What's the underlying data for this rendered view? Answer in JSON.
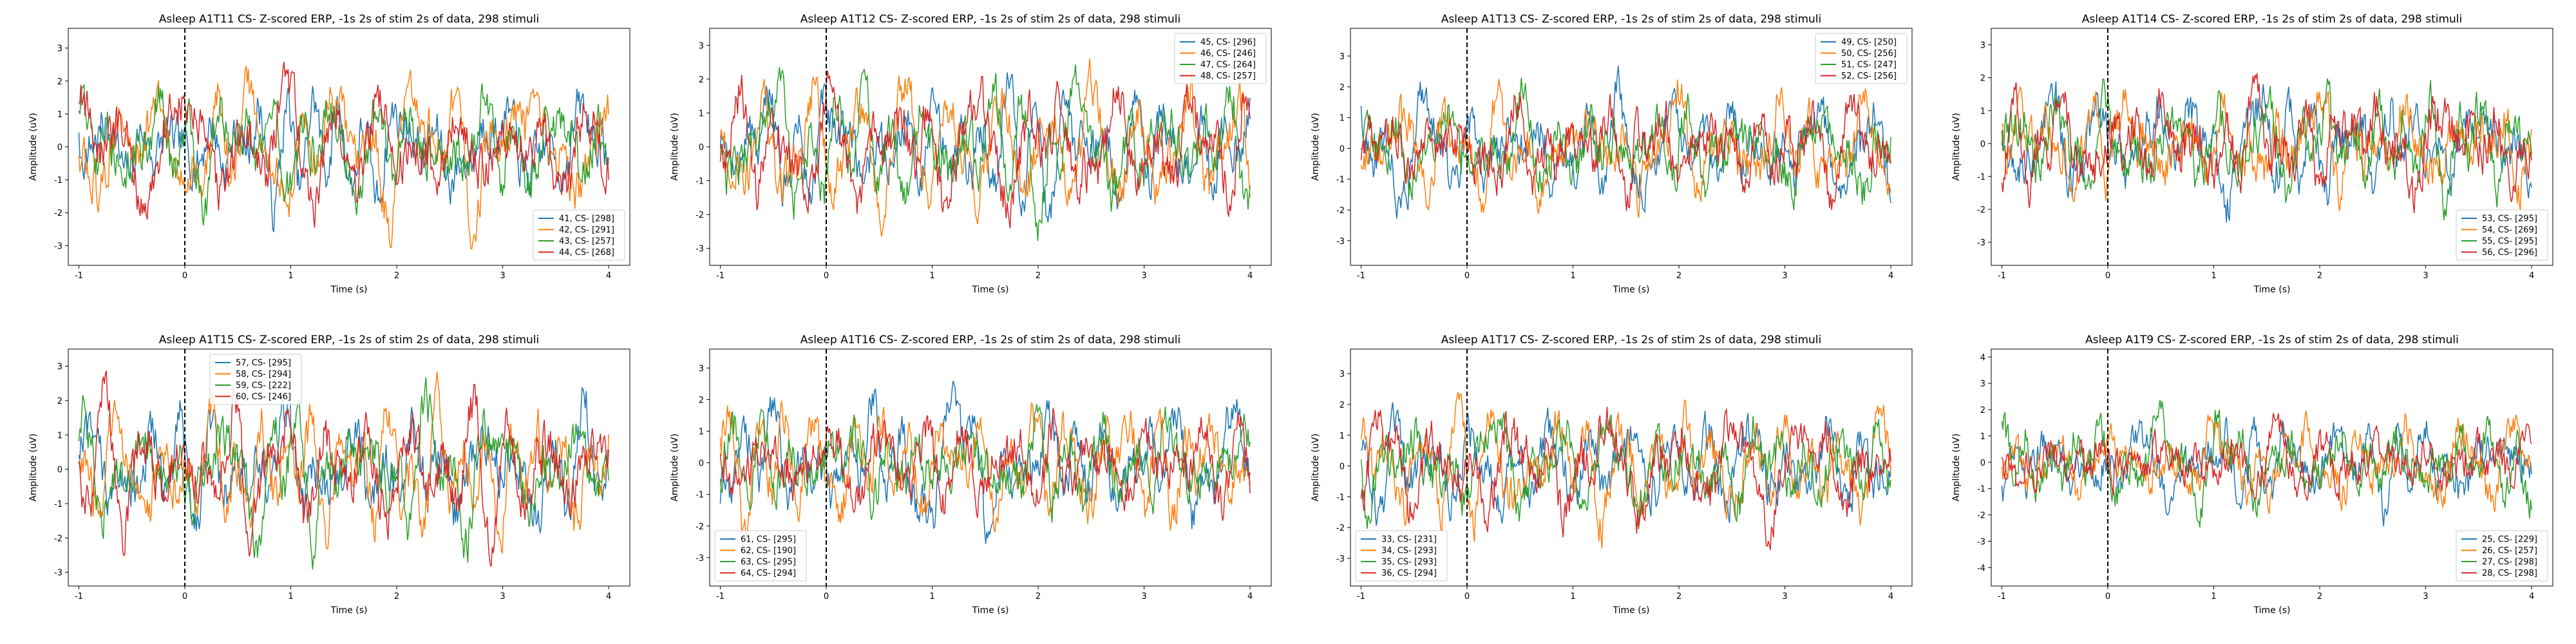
{
  "colors": [
    "#1f77b4",
    "#ff7f0e",
    "#2ca02c",
    "#d62728"
  ],
  "chart_data": [
    {
      "type": "line",
      "title": "Asleep A1T11 CS- Z-scored ERP, -1s 2s of stim 2s of data, 298 stimuli",
      "xlabel": "Time (s)",
      "ylabel": "Amplitude (uV)",
      "xlim": [
        -1.1,
        4.2
      ],
      "ylim": [
        -3.6,
        3.6
      ],
      "xticks": [
        -1,
        0,
        1,
        2,
        3,
        4
      ],
      "yticks": [
        -3,
        -2,
        -1,
        0,
        1,
        2,
        3
      ],
      "grid": false,
      "stim_line_x": 0,
      "legend_position": "lower-right",
      "series": [
        {
          "name": "41, CS- [298]",
          "color": "#1f77b4"
        },
        {
          "name": "42, CS- [291]",
          "color": "#ff7f0e"
        },
        {
          "name": "43, CS- [257]",
          "color": "#2ca02c"
        },
        {
          "name": "44, CS- [268]",
          "color": "#d62728"
        }
      ]
    },
    {
      "type": "line",
      "title": "Asleep A1T12 CS- Z-scored ERP, -1s 2s of stim 2s of data, 298 stimuli",
      "xlabel": "Time (s)",
      "ylabel": "Amplitude (uV)",
      "xlim": [
        -1.1,
        4.2
      ],
      "ylim": [
        -3.5,
        3.5
      ],
      "xticks": [
        -1,
        0,
        1,
        2,
        3,
        4
      ],
      "yticks": [
        -3,
        -2,
        -1,
        0,
        1,
        2,
        3
      ],
      "grid": false,
      "stim_line_x": 0,
      "legend_position": "top-right",
      "series": [
        {
          "name": "45, CS- [296]",
          "color": "#1f77b4"
        },
        {
          "name": "46, CS- [246]",
          "color": "#ff7f0e"
        },
        {
          "name": "47, CS- [264]",
          "color": "#2ca02c"
        },
        {
          "name": "48, CS- [257]",
          "color": "#d62728"
        }
      ]
    },
    {
      "type": "line",
      "title": "Asleep A1T13 CS- Z-scored ERP, -1s 2s of stim 2s of data, 298 stimuli",
      "xlabel": "Time (s)",
      "ylabel": "Amplitude (uV)",
      "xlim": [
        -1.1,
        4.2
      ],
      "ylim": [
        -3.8,
        3.9
      ],
      "xticks": [
        -1,
        0,
        1,
        2,
        3,
        4
      ],
      "yticks": [
        -3,
        -2,
        -1,
        0,
        1,
        2,
        3
      ],
      "grid": false,
      "stim_line_x": 0,
      "legend_position": "top-right",
      "series": [
        {
          "name": "49, CS- [250]",
          "color": "#1f77b4"
        },
        {
          "name": "50, CS- [256]",
          "color": "#ff7f0e"
        },
        {
          "name": "51, CS- [247]",
          "color": "#2ca02c"
        },
        {
          "name": "52, CS- [256]",
          "color": "#d62728"
        }
      ]
    },
    {
      "type": "line",
      "title": "Asleep A1T14 CS- Z-scored ERP, -1s 2s of stim 2s of data, 298 stimuli",
      "xlabel": "Time (s)",
      "ylabel": "Amplitude (uV)",
      "xlim": [
        -1.1,
        4.2
      ],
      "ylim": [
        -3.7,
        3.5
      ],
      "xticks": [
        -1,
        0,
        1,
        2,
        3,
        4
      ],
      "yticks": [
        -3,
        -2,
        -1,
        0,
        1,
        2,
        3
      ],
      "grid": false,
      "stim_line_x": 0,
      "legend_position": "lower-right",
      "series": [
        {
          "name": "53, CS- [295]",
          "color": "#1f77b4"
        },
        {
          "name": "54, CS- [269]",
          "color": "#ff7f0e"
        },
        {
          "name": "55, CS- [295]",
          "color": "#2ca02c"
        },
        {
          "name": "56, CS- [296]",
          "color": "#d62728"
        }
      ]
    },
    {
      "type": "line",
      "title": "Asleep A1T15 CS- Z-scored ERP, -1s 2s of stim 2s of data, 298 stimuli",
      "xlabel": "Time (s)",
      "ylabel": "Amplitude (uV)",
      "xlim": [
        -1.1,
        4.2
      ],
      "ylim": [
        -3.4,
        3.5
      ],
      "xticks": [
        -1,
        0,
        1,
        2,
        3,
        4
      ],
      "yticks": [
        -3,
        -2,
        -1,
        0,
        1,
        2,
        3
      ],
      "grid": false,
      "stim_line_x": 0,
      "legend_position": "top-center",
      "series": [
        {
          "name": "57, CS- [295]",
          "color": "#1f77b4"
        },
        {
          "name": "58, CS- [294]",
          "color": "#ff7f0e"
        },
        {
          "name": "59, CS- [222]",
          "color": "#2ca02c"
        },
        {
          "name": "60, CS- [246]",
          "color": "#d62728"
        }
      ]
    },
    {
      "type": "line",
      "title": "Asleep A1T16 CS- Z-scored ERP, -1s 2s of stim 2s of data, 298 stimuli",
      "xlabel": "Time (s)",
      "ylabel": "Amplitude (uV)",
      "xlim": [
        -1.1,
        4.2
      ],
      "ylim": [
        -3.9,
        3.6
      ],
      "xticks": [
        -1,
        0,
        1,
        2,
        3,
        4
      ],
      "yticks": [
        -3,
        -2,
        -1,
        0,
        1,
        2,
        3
      ],
      "grid": false,
      "stim_line_x": 0,
      "legend_position": "lower-left",
      "series": [
        {
          "name": "61, CS- [295]",
          "color": "#1f77b4"
        },
        {
          "name": "62, CS- [190]",
          "color": "#ff7f0e"
        },
        {
          "name": "63, CS- [295]",
          "color": "#2ca02c"
        },
        {
          "name": "64, CS- [294]",
          "color": "#d62728"
        }
      ]
    },
    {
      "type": "line",
      "title": "Asleep A1T17 CS- Z-scored ERP, -1s 2s of stim 2s of data, 298 stimuli",
      "xlabel": "Time (s)",
      "ylabel": "Amplitude (uV)",
      "xlim": [
        -1.1,
        4.2
      ],
      "ylim": [
        -3.9,
        3.8
      ],
      "xticks": [
        -1,
        0,
        1,
        2,
        3,
        4
      ],
      "yticks": [
        -3,
        -2,
        -1,
        0,
        1,
        2,
        3
      ],
      "grid": false,
      "stim_line_x": 0,
      "legend_position": "lower-left",
      "series": [
        {
          "name": "33, CS- [231]",
          "color": "#1f77b4"
        },
        {
          "name": "34, CS- [293]",
          "color": "#ff7f0e"
        },
        {
          "name": "35, CS- [293]",
          "color": "#2ca02c"
        },
        {
          "name": "36, CS- [294]",
          "color": "#d62728"
        }
      ]
    },
    {
      "type": "line",
      "title": "Asleep A1T9 CS- Z-scored ERP, -1s 2s of stim 2s of data, 298 stimuli",
      "xlabel": "Time (s)",
      "ylabel": "Amplitude (uV)",
      "xlim": [
        -1.1,
        4.2
      ],
      "ylim": [
        -4.7,
        4.3
      ],
      "xticks": [
        -1,
        0,
        1,
        2,
        3,
        4
      ],
      "yticks": [
        -4,
        -3,
        -2,
        -1,
        0,
        1,
        2,
        3,
        4
      ],
      "grid": false,
      "stim_line_x": 0,
      "legend_position": "lower-right",
      "series": [
        {
          "name": "25, CS- [229]",
          "color": "#1f77b4"
        },
        {
          "name": "26, CS- [257]",
          "color": "#ff7f0e"
        },
        {
          "name": "27, CS- [298]",
          "color": "#2ca02c"
        },
        {
          "name": "28, CS- [298]",
          "color": "#d62728"
        }
      ]
    }
  ]
}
